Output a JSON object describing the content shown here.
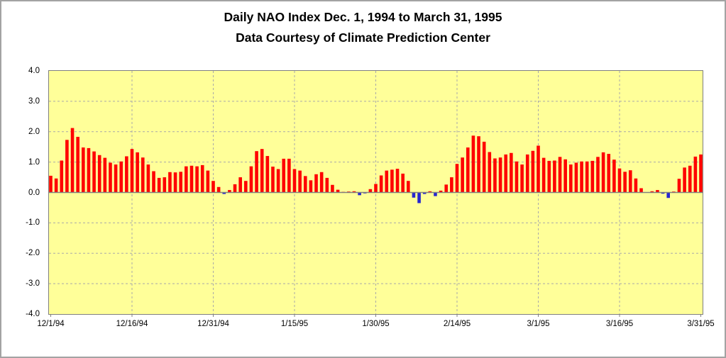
{
  "window": {
    "background": "#FFFFFF",
    "frame_border_color": "#A3A3A3"
  },
  "title": {
    "line1": "Daily NAO Index Dec. 1, 1994 to March 31, 1995",
    "line2": "Data Courtesy of Climate Prediction Center"
  },
  "chart_data": {
    "type": "bar",
    "title": "Daily NAO Index Dec. 1, 1994 to March 31, 1995",
    "subtitle": "Data Courtesy of Climate Prediction Center",
    "x_start": "12/1/94",
    "x_end": "3/31/95",
    "frequency": "daily",
    "n_points": 121,
    "ylim": [
      -4.0,
      4.0
    ],
    "ytick_interval": 1.0,
    "yticks": [
      {
        "value": 4,
        "label": "4.0"
      },
      {
        "value": 3,
        "label": "3.0"
      },
      {
        "value": 2,
        "label": "2.0"
      },
      {
        "value": 1,
        "label": "1.0"
      },
      {
        "value": 0,
        "label": "0.0"
      },
      {
        "value": -1,
        "label": "-1.0"
      },
      {
        "value": -2,
        "label": "-2.0"
      },
      {
        "value": -3,
        "label": "-3.0"
      },
      {
        "value": -4,
        "label": "-4.0"
      }
    ],
    "xticks": [
      {
        "day": 0,
        "label": "12/1/94"
      },
      {
        "day": 15,
        "label": "12/16/94"
      },
      {
        "day": 30,
        "label": "12/31/94"
      },
      {
        "day": 45,
        "label": "1/15/95"
      },
      {
        "day": 60,
        "label": "1/30/95"
      },
      {
        "day": 75,
        "label": "2/14/95"
      },
      {
        "day": 90,
        "label": "3/1/95"
      },
      {
        "day": 105,
        "label": "3/16/95"
      },
      {
        "day": 120,
        "label": "3/31/95"
      }
    ],
    "grid": "dashed",
    "legend": "none",
    "plot_bg": "#FFFF99",
    "gridline_color": "#A9A9A9",
    "axis_color": "#808080",
    "positive_color": "#FF0000",
    "negative_color": "#2626CF",
    "values": [
      0.55,
      0.46,
      1.05,
      1.73,
      2.12,
      1.83,
      1.48,
      1.46,
      1.35,
      1.23,
      1.14,
      0.98,
      0.92,
      1.02,
      1.19,
      1.43,
      1.32,
      1.15,
      0.92,
      0.7,
      0.48,
      0.5,
      0.67,
      0.66,
      0.68,
      0.86,
      0.88,
      0.86,
      0.9,
      0.72,
      0.38,
      0.18,
      -0.05,
      0.08,
      0.27,
      0.5,
      0.38,
      0.86,
      1.36,
      1.43,
      1.2,
      0.85,
      0.77,
      1.11,
      1.11,
      0.77,
      0.72,
      0.54,
      0.4,
      0.6,
      0.67,
      0.48,
      0.25,
      0.09,
      0.02,
      0.03,
      0.04,
      -0.09,
      -0.03,
      0.11,
      0.28,
      0.56,
      0.72,
      0.75,
      0.78,
      0.62,
      0.38,
      -0.17,
      -0.35,
      -0.05,
      0.04,
      -0.12,
      0.06,
      0.26,
      0.5,
      0.94,
      1.15,
      1.48,
      1.87,
      1.85,
      1.67,
      1.33,
      1.12,
      1.15,
      1.25,
      1.3,
      1.02,
      0.92,
      1.25,
      1.37,
      1.54,
      1.14,
      1.04,
      1.05,
      1.17,
      1.09,
      0.92,
      0.98,
      1.02,
      1.02,
      1.04,
      1.17,
      1.32,
      1.27,
      1.08,
      0.79,
      0.68,
      0.73,
      0.46,
      0.14,
      0.01,
      0.04,
      0.08,
      -0.04,
      -0.18,
      0.03,
      0.45,
      0.82,
      0.88,
      1.18,
      1.25
    ]
  }
}
